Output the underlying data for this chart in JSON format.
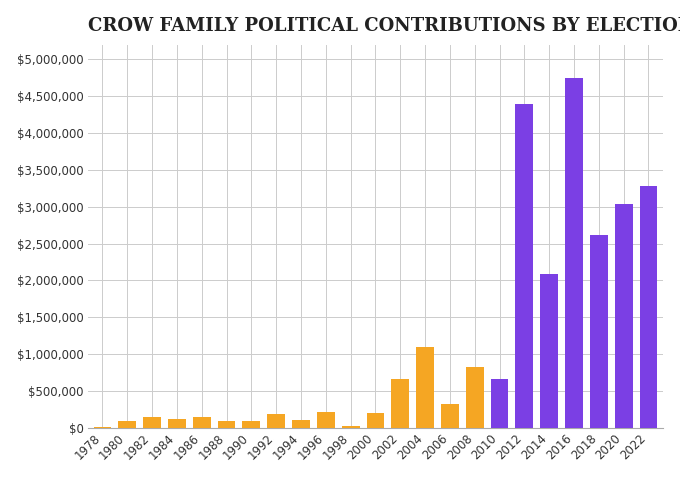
{
  "title": "CROW FAMILY POLITICAL CONTRIBUTIONS BY ELECTION CYCLE",
  "categories": [
    1978,
    1980,
    1982,
    1984,
    1986,
    1988,
    1990,
    1992,
    1994,
    1996,
    1998,
    2000,
    2002,
    2004,
    2006,
    2008,
    2010,
    2012,
    2014,
    2016,
    2018,
    2020,
    2022
  ],
  "values": [
    10000,
    95000,
    150000,
    120000,
    140000,
    95000,
    90000,
    180000,
    110000,
    210000,
    20000,
    200000,
    660000,
    1100000,
    320000,
    830000,
    660000,
    4400000,
    2080000,
    4750000,
    2620000,
    3030000,
    3280000
  ],
  "colors": [
    "#f5a623",
    "#f5a623",
    "#f5a623",
    "#f5a623",
    "#f5a623",
    "#f5a623",
    "#f5a623",
    "#f5a623",
    "#f5a623",
    "#f5a623",
    "#f5a623",
    "#f5a623",
    "#f5a623",
    "#f5a623",
    "#f5a623",
    "#f5a623",
    "#7b3fe4",
    "#7b3fe4",
    "#7b3fe4",
    "#7b3fe4",
    "#7b3fe4",
    "#7b3fe4",
    "#7b3fe4"
  ],
  "ylim": [
    0,
    5200000
  ],
  "yticks": [
    0,
    500000,
    1000000,
    1500000,
    2000000,
    2500000,
    3000000,
    3500000,
    4000000,
    4500000,
    5000000
  ],
  "bg_color": "#ffffff",
  "grid_color": "#cccccc",
  "title_fontsize": 13,
  "tick_fontsize": 8.5
}
